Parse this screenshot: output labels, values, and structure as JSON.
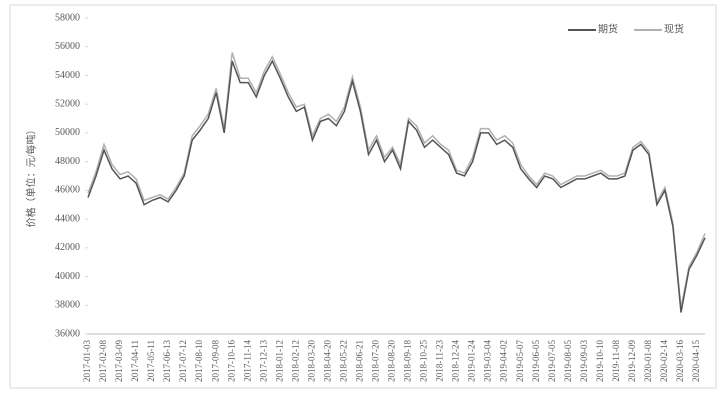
{
  "chart_data": {
    "type": "line",
    "ylabel": "价格（单位：元/每吨）",
    "categories": [
      "2017-01-03",
      null,
      "2017-02-08",
      null,
      "2017-03-09",
      null,
      "2017-04-11",
      null,
      "2017-05-11",
      null,
      "2017-06-13",
      null,
      "2017-07-12",
      null,
      "2017-08-10",
      null,
      "2017-09-08",
      null,
      "2017-10-16",
      null,
      "2017-11-14",
      null,
      "2017-12-13",
      null,
      "2018-01-12",
      null,
      "2018-02-12",
      null,
      "2018-03-20",
      null,
      "2018-04-20",
      null,
      "2018-05-22",
      null,
      "2018-06-21",
      null,
      "2018-07-20",
      null,
      "2018-08-20",
      null,
      "2018-09-18",
      null,
      "2018-10-25",
      null,
      "2018-11-23",
      null,
      "2018-12-24",
      null,
      "2019-01-24",
      null,
      "2019-03-04",
      null,
      "2019-04-02",
      null,
      "2019-05-07",
      null,
      "2019-06-05",
      null,
      "2019-07-05",
      null,
      "2019-08-05",
      null,
      "2019-09-03",
      null,
      "2019-10-10",
      null,
      "2019-11-08",
      null,
      "2019-12-09",
      null,
      "2020-01-08",
      null,
      "2020-02-14",
      null,
      "2020-03-16",
      null,
      "2020-04-15",
      null
    ],
    "series": [
      {
        "name": "期货",
        "color": "#555555",
        "values": [
          45500,
          47000,
          48800,
          47500,
          46800,
          47000,
          46500,
          45000,
          45300,
          45500,
          45200,
          46000,
          47000,
          49500,
          50200,
          51000,
          52800,
          50000,
          55000,
          53500,
          53500,
          52500,
          54000,
          55000,
          53800,
          52500,
          51500,
          51800,
          49500,
          50800,
          51000,
          50500,
          51500,
          53600,
          51500,
          48500,
          49500,
          48000,
          48800,
          47500,
          50800,
          50200,
          49000,
          49500,
          49000,
          48500,
          47200,
          47000,
          48000,
          50000,
          50000,
          49200,
          49500,
          49000,
          47500,
          46800,
          46200,
          47000,
          46800,
          46200,
          46500,
          46800,
          46800,
          47000,
          47200,
          46800,
          46800,
          47000,
          48800,
          49200,
          48500,
          45000,
          46000,
          43500,
          37500,
          40500,
          41500,
          42700
        ]
      },
      {
        "name": "现货",
        "color": "#b0b0b0",
        "values": [
          45800,
          47300,
          49200,
          47800,
          47100,
          47300,
          46800,
          45300,
          45500,
          45700,
          45400,
          46200,
          47200,
          49800,
          50500,
          51300,
          53100,
          50300,
          55600,
          53800,
          53800,
          52800,
          54300,
          55300,
          54100,
          52800,
          51800,
          52000,
          49800,
          51000,
          51300,
          50800,
          51800,
          53900,
          51800,
          48800,
          49800,
          48300,
          49000,
          47800,
          51000,
          50500,
          49300,
          49800,
          49200,
          48800,
          47400,
          47200,
          48300,
          50300,
          50300,
          49500,
          49800,
          49300,
          47800,
          47000,
          46400,
          47200,
          47000,
          46400,
          46700,
          47000,
          47000,
          47200,
          47400,
          47000,
          47000,
          47200,
          49000,
          49400,
          48700,
          45200,
          46200,
          43700,
          37800,
          40700,
          41700,
          43000
        ]
      }
    ],
    "ylim": [
      36000,
      58000
    ],
    "yticks": [
      36000,
      38000,
      40000,
      42000,
      44000,
      46000,
      48000,
      50000,
      52000,
      54000,
      56000,
      58000
    ],
    "legend": "top-right"
  }
}
